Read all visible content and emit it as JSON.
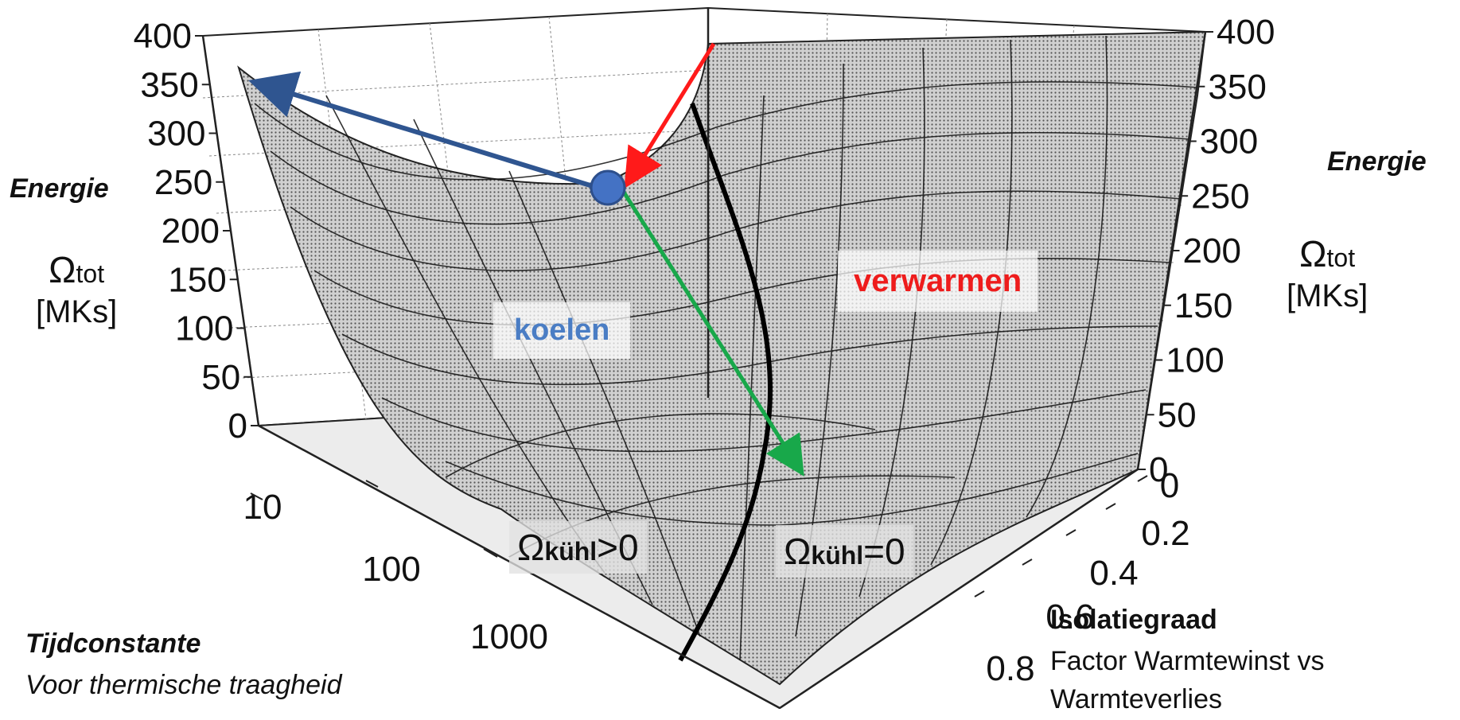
{
  "z_ticks_left": [
    "400",
    "350",
    "300",
    "250",
    "200",
    "150",
    "100",
    "50",
    "0"
  ],
  "z_ticks_right": [
    "400",
    "350",
    "300",
    "250",
    "200",
    "150",
    "100",
    "50",
    "0"
  ],
  "x_ticks": [
    "10",
    "100",
    "1000"
  ],
  "y_ticks": [
    "0",
    "0.2",
    "0.4",
    "0.6",
    "0.8"
  ],
  "left_axis": {
    "title": "Energie",
    "symbol": "Ω",
    "subscript": "tot",
    "unit": "[MKs]"
  },
  "right_axis": {
    "title": "Energie",
    "symbol": "Ω",
    "subscript": "tot",
    "unit": "[MKs]"
  },
  "x_axis": {
    "title": "Tijdconstante",
    "subtitle": "Voor thermische traagheid"
  },
  "y_axis": {
    "title": "Isolatiegraad",
    "subtitle_line1": "Factor  Warmtewinst vs",
    "subtitle_line2": "Warmteverlies"
  },
  "region_labels": {
    "cooling": "koelen",
    "heating": "verwarmen"
  },
  "boundary_labels": {
    "left_symbol": "Ω",
    "left_subscript": "kühl",
    "left_relation": ">0",
    "right_symbol": "Ω",
    "right_subscript": "kühl",
    "right_relation": "=0"
  },
  "colors": {
    "cooling_text": "#4a7dc4",
    "heating_text": "#ee1c1c",
    "arrow_blue": "#2f5590",
    "arrow_red": "#ff1a1a",
    "arrow_green": "#18a84a",
    "marker_fill": "#4472c4"
  }
}
